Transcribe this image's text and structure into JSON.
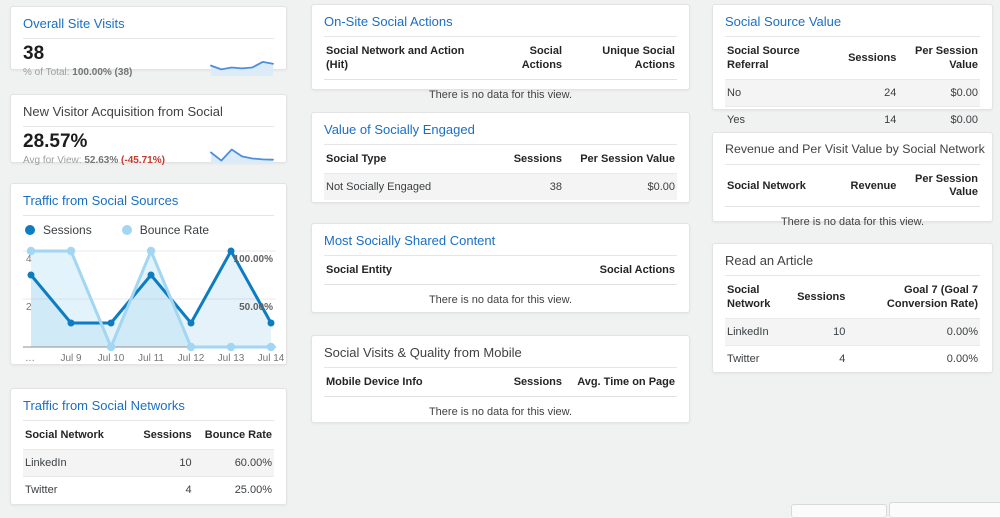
{
  "page": {
    "background": "#f0f1f1"
  },
  "colors": {
    "link_blue": "#1a6fc4",
    "sessions_blue": "#0d7cc1",
    "bounce_light_blue": "#a2d6f3",
    "sparkline_blue": "#4d90d9",
    "delta_red": "#c5392b"
  },
  "cards": {
    "overall_site_visits": {
      "title": "Overall Site Visits",
      "value": "38",
      "sub_prefix": "% of Total: ",
      "sub_value": "100.00%",
      "sub_extra": " (38)"
    },
    "new_visitor_acquisition": {
      "title": "New Visitor Acquisition from Social",
      "value": "28.57%",
      "sub_prefix": "Avg for View: ",
      "sub_value": "52.63%",
      "sub_extra": " (-45.71%)"
    },
    "traffic_social_sources": {
      "title": "Traffic from Social Sources"
    },
    "traffic_social_networks": {
      "title": "Traffic from Social Networks",
      "table": {
        "headers": [
          "Social Network",
          "Sessions",
          "Bounce Rate"
        ],
        "rows": [
          [
            "LinkedIn",
            "10",
            "60.00%"
          ],
          [
            "Twitter",
            "4",
            "25.00%"
          ]
        ]
      }
    },
    "on_site_social_actions": {
      "title": "On-Site Social Actions",
      "table": {
        "headers": [
          "Social Network and Action (Hit)",
          "Social Actions",
          "Unique Social Actions"
        ],
        "rows": [],
        "no_data": "There is no data for this view."
      }
    },
    "value_socially_engaged": {
      "title": "Value of Socially Engaged",
      "table": {
        "headers": [
          "Social Type",
          "Sessions",
          "Per Session Value"
        ],
        "rows": [
          [
            "Not Socially Engaged",
            "38",
            "$0.00"
          ]
        ]
      }
    },
    "most_socially_shared": {
      "title": "Most Socially Shared Content",
      "table": {
        "headers": [
          "Social Entity",
          "Social Actions"
        ],
        "rows": [],
        "no_data": "There is no data for this view."
      }
    },
    "social_visits_mobile": {
      "title": "Social Visits & Quality from Mobile",
      "table": {
        "headers": [
          "Mobile Device Info",
          "Sessions",
          "Avg. Time on Page"
        ],
        "rows": [],
        "no_data": "There is no data for this view."
      }
    },
    "social_source_value": {
      "title": "Social Source Value",
      "table": {
        "headers": [
          "Social Source Referral",
          "Sessions",
          "Per Session Value"
        ],
        "rows": [
          [
            "No",
            "24",
            "$0.00"
          ],
          [
            "Yes",
            "14",
            "$0.00"
          ]
        ]
      }
    },
    "revenue_per_visit": {
      "title": "Revenue and Per Visit Value by Social Network",
      "table": {
        "headers": [
          "Social Network",
          "Revenue",
          "Per Session Value"
        ],
        "rows": [],
        "no_data": "There is no data for this view."
      }
    },
    "read_an_article": {
      "title": "Read an Article",
      "table": {
        "headers": [
          "Social Network",
          "Sessions",
          "Goal 7 (Goal 7 Conversion Rate)"
        ],
        "rows": [
          [
            "LinkedIn",
            "10",
            "0.00%"
          ],
          [
            "Twitter",
            "4",
            "0.00%"
          ]
        ]
      }
    }
  },
  "chart_data": [
    {
      "id": "traffic-timeline",
      "type": "line",
      "title": "Traffic from Social Sources",
      "x": [
        "…",
        "Jul 9",
        "Jul 10",
        "Jul 11",
        "Jul 12",
        "Jul 13",
        "Jul 14"
      ],
      "series": [
        {
          "name": "Sessions",
          "axis": "left",
          "color": "#0d7cc1",
          "fill": "rgba(13,124,193,0.10)",
          "values": [
            3,
            1,
            1,
            3,
            1,
            4,
            1
          ]
        },
        {
          "name": "Bounce Rate",
          "axis": "right",
          "color": "#a2d6f3",
          "fill": "rgba(162,214,243,0.30)",
          "values": [
            100,
            100,
            0,
            100,
            0,
            0,
            0
          ]
        }
      ],
      "left_axis": {
        "ticks": [
          "2",
          "4"
        ],
        "range": [
          0,
          4
        ]
      },
      "right_axis": {
        "ticks": [
          "50.00%",
          "100.00%"
        ],
        "range": [
          0,
          100
        ]
      },
      "grid": true,
      "legend_position": "top"
    },
    {
      "id": "spark-overall-visits",
      "type": "area",
      "color": "#4d90d9",
      "fill": "#dcebf8",
      "values": [
        5,
        3,
        4,
        3.5,
        4,
        7,
        6
      ],
      "ymax": 8
    },
    {
      "id": "spark-new-visitor",
      "type": "area",
      "color": "#4d90d9",
      "fill": "#dcebf8",
      "values": [
        3.5,
        0.8,
        4.5,
        2.2,
        1.5,
        1.2,
        1.1
      ],
      "ymax": 5
    }
  ],
  "footer": {
    "partial_buttons": 2
  }
}
